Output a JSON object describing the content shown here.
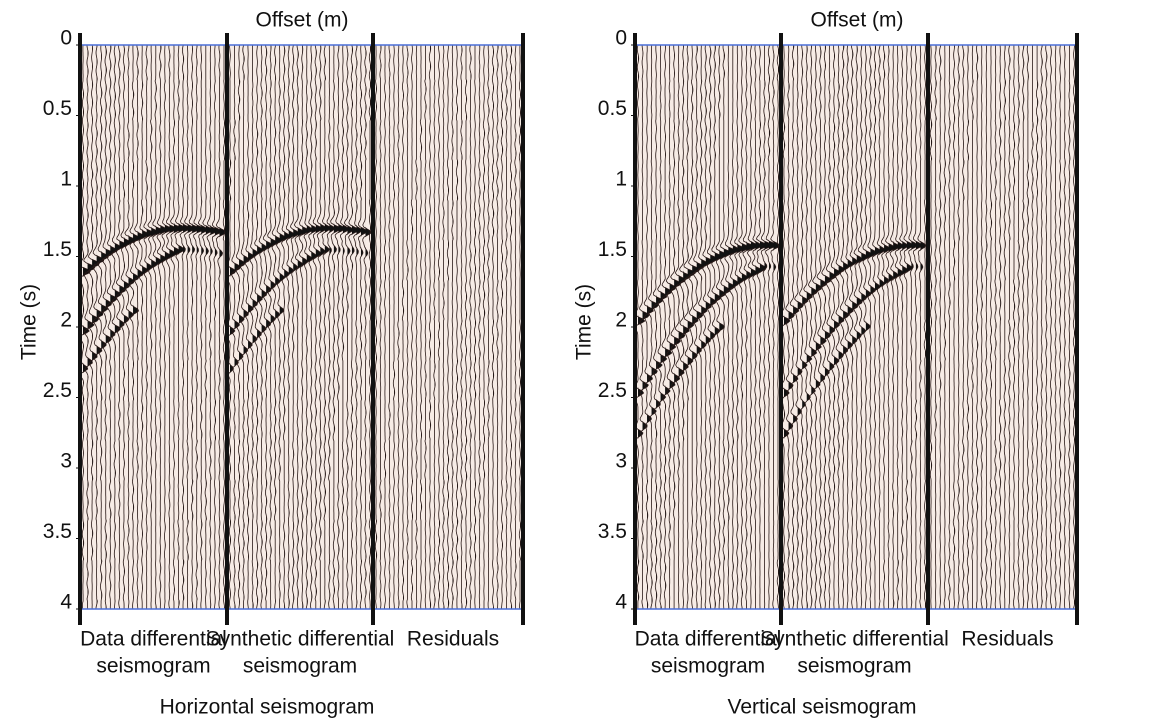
{
  "panels": [
    {
      "x_label": "Offset (m)",
      "y_label": "Time (s)",
      "ylim": [
        0,
        4
      ],
      "yticks": [
        0,
        0.5,
        1,
        1.5,
        2,
        2.5,
        3,
        3.5,
        4
      ],
      "sections": [
        [
          "Data differential",
          "seismogram"
        ],
        [
          "Synthetic differential",
          "seismogram"
        ],
        [
          "Residuals"
        ]
      ],
      "title": "Horizontal seismogram"
    },
    {
      "x_label": "Offset (m)",
      "y_label": "Time (s)",
      "ylim": [
        0,
        4
      ],
      "yticks": [
        0,
        0.5,
        1,
        1.5,
        2,
        2.5,
        3,
        3.5,
        4
      ],
      "sections": [
        [
          "Data differential",
          "seismogram"
        ],
        [
          "Synthetic differential",
          "seismogram"
        ],
        [
          "Residuals"
        ]
      ],
      "title": "Vertical seismogram"
    }
  ]
}
